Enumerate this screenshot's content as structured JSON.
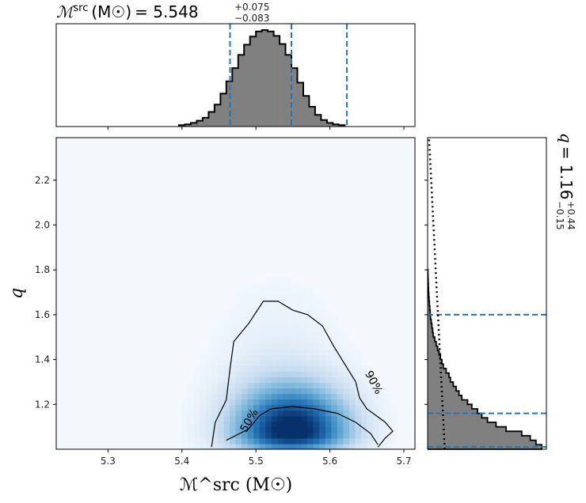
{
  "chart_data": [
    {
      "type": "heatmap",
      "name": "joint-posterior",
      "xlabel": "ℳ^src (M☉)",
      "ylabel": "q",
      "xlim": [
        5.23,
        5.715
      ],
      "ylim": [
        1.0,
        2.39
      ],
      "xticks": [
        "5.3",
        "5.4",
        "5.5",
        "5.6",
        "5.7"
      ],
      "yticks": [
        "1.2",
        "1.4",
        "1.6",
        "1.8",
        "2.0",
        "2.2"
      ],
      "peak": {
        "x": 5.55,
        "y": 1.08
      },
      "contours": [
        {
          "label": "50%",
          "points": [
            [
              5.46,
              1.04
            ],
            [
              5.49,
              1.09
            ],
            [
              5.505,
              1.15
            ],
            [
              5.52,
              1.18
            ],
            [
              5.55,
              1.19
            ],
            [
              5.58,
              1.18
            ],
            [
              5.61,
              1.16
            ],
            [
              5.635,
              1.12
            ],
            [
              5.655,
              1.07
            ],
            [
              5.665,
              1.02
            ]
          ]
        },
        {
          "label": "90%",
          "points": [
            [
              5.44,
              1.01
            ],
            [
              5.445,
              1.12
            ],
            [
              5.46,
              1.22
            ],
            [
              5.465,
              1.36
            ],
            [
              5.47,
              1.48
            ],
            [
              5.49,
              1.56
            ],
            [
              5.51,
              1.66
            ],
            [
              5.53,
              1.66
            ],
            [
              5.55,
              1.62
            ],
            [
              5.57,
              1.6
            ],
            [
              5.59,
              1.55
            ],
            [
              5.605,
              1.46
            ],
            [
              5.62,
              1.38
            ],
            [
              5.635,
              1.3
            ],
            [
              5.64,
              1.23
            ],
            [
              5.65,
              1.18
            ],
            [
              5.675,
              1.12
            ],
            [
              5.685,
              1.08
            ],
            [
              5.675,
              1.05
            ],
            [
              5.665,
              1.01
            ]
          ]
        }
      ]
    },
    {
      "type": "bar",
      "name": "chirp-mass-marginal",
      "title_symbol": "ℳ",
      "title_sup": "src",
      "title_unit": "(M☉)",
      "title_value": "= 5.548",
      "title_plus": "+0.075",
      "title_minus": "−0.083",
      "bins_start": 5.396,
      "bin_width": 0.008,
      "values": [
        2,
        3,
        5,
        8,
        12,
        20,
        30,
        45,
        62,
        80,
        98,
        112,
        123,
        130,
        132,
        130,
        124,
        113,
        98,
        80,
        60,
        42,
        27,
        16,
        9,
        5,
        3,
        2
      ],
      "quantile_lines": [
        5.465,
        5.548,
        5.623
      ],
      "line_color": "#1f77b4",
      "fill_color": "#808080"
    },
    {
      "type": "bar",
      "name": "mass-ratio-marginal",
      "orientation": "horizontal",
      "title_symbol": "q",
      "title_value": "= 1.16",
      "title_plus": "+0.44",
      "title_minus": "−0.15",
      "bins_start": 1.0,
      "bin_width": 0.02,
      "values": [
        80,
        76,
        72,
        66,
        55,
        48,
        42,
        38,
        35,
        31,
        28,
        24,
        22,
        20,
        18,
        16,
        15,
        13,
        11,
        10,
        9,
        8,
        7,
        6,
        5,
        4,
        3.5,
        3,
        2.5,
        2,
        1.8,
        1.5,
        1.2,
        1,
        0.8,
        0.6,
        0.5,
        0.4,
        0.3,
        0.2
      ],
      "quantile_lines": [
        1.01,
        1.16,
        1.6
      ],
      "prior_line": [
        [
          1.0,
          12
        ],
        [
          2.39,
          1
        ]
      ],
      "line_color": "#1f77b4",
      "fill_color": "#808080"
    }
  ]
}
